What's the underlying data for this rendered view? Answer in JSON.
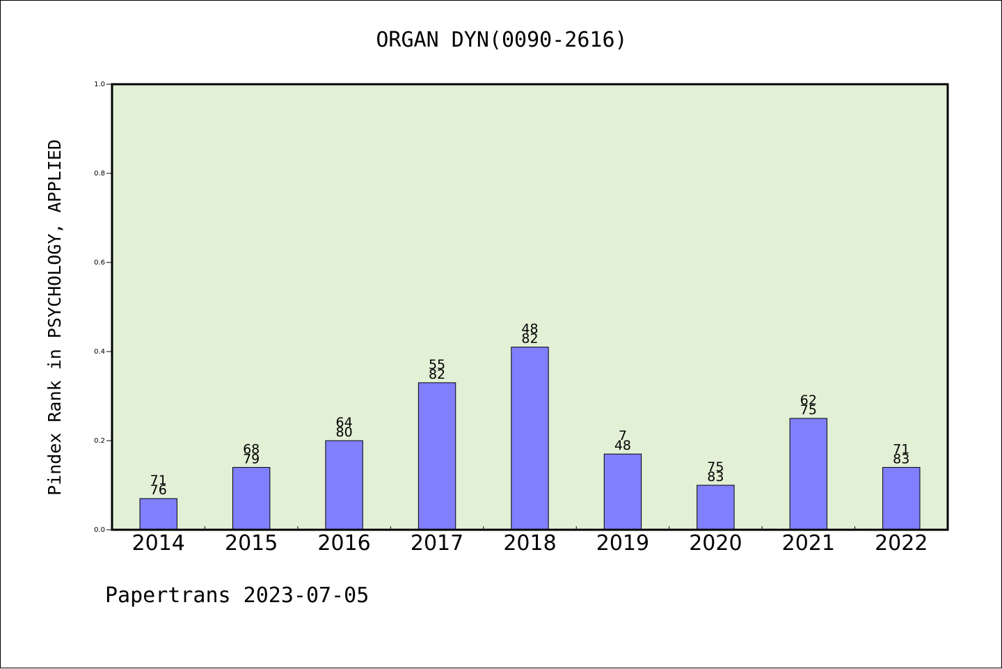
{
  "chart_data": {
    "type": "bar",
    "title": "ORGAN DYN(0090-2616)",
    "ylabel": "Pindex Rank in PSYCHOLOGY, APPLIED",
    "xlabel": "",
    "footer": "Papertrans 2023-07-05",
    "categories": [
      "2014",
      "2015",
      "2016",
      "2017",
      "2018",
      "2019",
      "2020",
      "2021",
      "2022"
    ],
    "values": [
      0.07,
      0.14,
      0.2,
      0.33,
      0.41,
      0.17,
      0.1,
      0.25,
      0.14
    ],
    "label_top": [
      "71",
      "68",
      "64",
      "55",
      "48",
      "7",
      "75",
      "62",
      "71"
    ],
    "label_bottom": [
      "76",
      "79",
      "80",
      "82",
      "82",
      "48",
      "83",
      "75",
      "83"
    ],
    "ylim": [
      0,
      1.0
    ],
    "yticks": [
      "0.0",
      "0.2",
      "0.4",
      "0.6",
      "0.8",
      "1.0"
    ],
    "grid": false,
    "colors": {
      "plot_background": "#e2f0d6",
      "bar_fill": "#8080ff",
      "bar_stroke": "#000000"
    }
  }
}
